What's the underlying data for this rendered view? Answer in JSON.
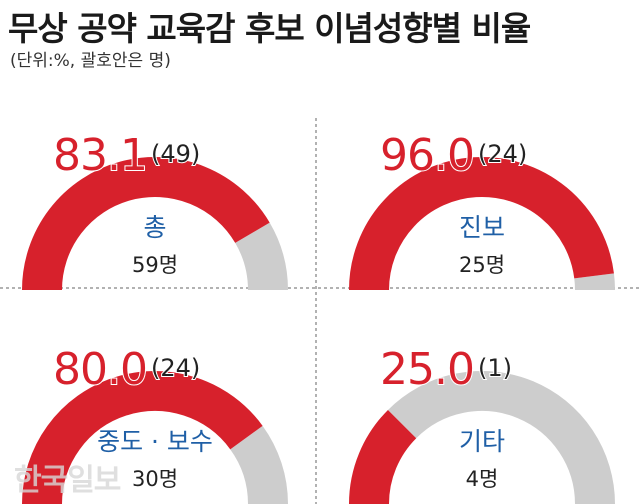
{
  "title": "무상 공약 교육감 후보 이념성향별 비율",
  "subtitle": "(단위:%, 괄호안은 명)",
  "watermark": "한국일보",
  "colors": {
    "filled": "#d7212c",
    "remainder": "#cdcdcd",
    "label": "#1f5fa6",
    "count": "#222222"
  },
  "chart_data": [
    {
      "type": "pie",
      "category": "총",
      "value": 83.1,
      "value_label": "83.1",
      "count_label": "(49)",
      "total_label": "59명",
      "range": [
        0,
        100
      ]
    },
    {
      "type": "pie",
      "category": "진보",
      "value": 96.0,
      "value_label": "96.0",
      "count_label": "(24)",
      "total_label": "25명",
      "range": [
        0,
        100
      ]
    },
    {
      "type": "pie",
      "category": "중도 · 보수",
      "value": 80.0,
      "value_label": "80.0",
      "count_label": "(24)",
      "total_label": "30명",
      "range": [
        0,
        100
      ]
    },
    {
      "type": "pie",
      "category": "기타",
      "value": 25.0,
      "value_label": "25.0",
      "count_label": "(1)",
      "total_label": "4명",
      "range": [
        0,
        100
      ]
    }
  ]
}
